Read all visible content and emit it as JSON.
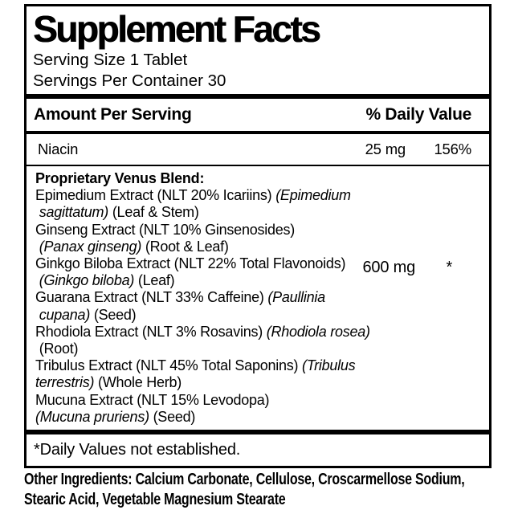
{
  "panel": {
    "title": "Supplement Facts",
    "serving_size": "Serving Size 1 Tablet",
    "servings_per_container": "Servings Per Container 30",
    "columns": {
      "amount": "Amount Per Serving",
      "daily_value": "% Daily Value"
    },
    "nutrients": [
      {
        "name": "Niacin",
        "amount": "25 mg",
        "daily_value": "156%"
      }
    ],
    "blend": {
      "amount": "600 mg",
      "daily_value": "*",
      "lines": [
        [
          {
            "t": "Proprietary Venus Blend:",
            "b": true
          }
        ],
        [
          {
            "t": "Epimedium Extract (NLT 20% Icariins) "
          },
          {
            "t": "(Epimedium",
            "i": true
          }
        ],
        [
          {
            "t": " "
          },
          {
            "t": "sagittatum)",
            "i": true
          },
          {
            "t": " (Leaf & Stem)"
          }
        ],
        [
          {
            "t": "Ginseng Extract (NLT 10% Ginsenosides)"
          }
        ],
        [
          {
            "t": " "
          },
          {
            "t": "(Panax ginseng)",
            "i": true
          },
          {
            "t": " (Root & Leaf)"
          }
        ],
        [
          {
            "t": "Ginkgo Biloba Extract (NLT 22% Total Flavonoids)"
          }
        ],
        [
          {
            "t": " "
          },
          {
            "t": "(Ginkgo biloba)",
            "i": true
          },
          {
            "t": " (Leaf)"
          }
        ],
        [
          {
            "t": "Guarana Extract (NLT 33% Caffeine) "
          },
          {
            "t": "(Paullinia",
            "i": true
          }
        ],
        [
          {
            "t": " "
          },
          {
            "t": "cupana)",
            "i": true
          },
          {
            "t": " (Seed)"
          }
        ],
        [
          {
            "t": "Rhodiola Extract (NLT 3% Rosavins) "
          },
          {
            "t": "(Rhodiola rosea)",
            "i": true
          }
        ],
        [
          {
            "t": " (Root)"
          }
        ],
        [
          {
            "t": "Tribulus Extract (NLT 45% Total Saponins) "
          },
          {
            "t": "(Tribulus",
            "i": true
          }
        ],
        [
          {
            "t": "terrestris)",
            "i": true
          },
          {
            "t": " (Whole Herb)"
          }
        ],
        [
          {
            "t": "Mucuna Extract (NLT 15% Levodopa)"
          }
        ],
        [
          {
            "t": "(Mucuna pruriens)",
            "i": true
          },
          {
            "t": " (Seed)"
          }
        ]
      ]
    },
    "footnote": "*Daily Values not established."
  },
  "other_ingredients": {
    "lines": [
      "Other Ingredients: Calcium Carbonate, Cellulose, Croscarmellose Sodium,",
      "Stearic Acid, Vegetable Magnesium Stearate"
    ]
  },
  "colors": {
    "text": "#000000",
    "background": "#ffffff",
    "border": "#000000"
  }
}
